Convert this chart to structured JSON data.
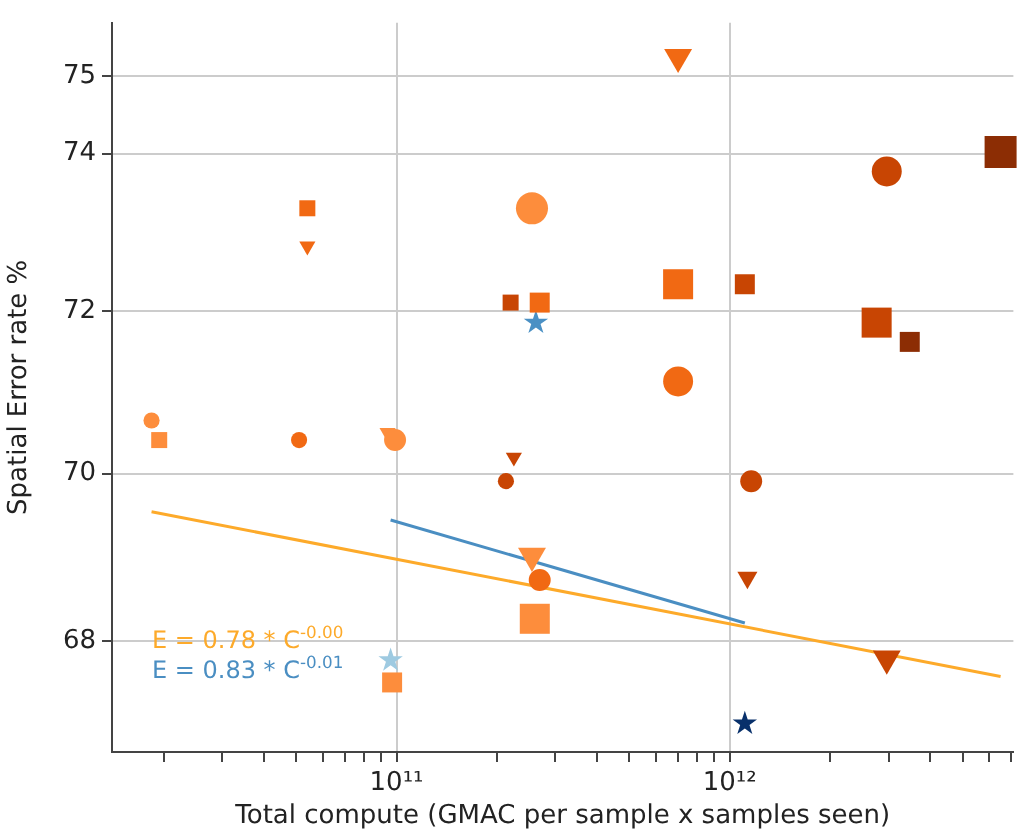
{
  "chart_data": {
    "type": "bubble",
    "xlabel": "Total compute (GMAC per sample x samples seen)",
    "ylabel": "Spatial Error rate %",
    "log": "xy",
    "grid": true,
    "legend": false,
    "xlim": [
      14000000000.0,
      7100000000000.0
    ],
    "ylim": [
      66.7,
      75.7
    ],
    "xticks": [
      {
        "value": 20000000000.0,
        "label": null
      },
      {
        "value": 30000000000.0,
        "label": null
      },
      {
        "value": 40000000000.0,
        "label": null
      },
      {
        "value": 50000000000.0,
        "label": null
      },
      {
        "value": 60000000000.0,
        "label": null
      },
      {
        "value": 70000000000.0,
        "label": null
      },
      {
        "value": 80000000000.0,
        "label": null
      },
      {
        "value": 90000000000.0,
        "label": null
      },
      {
        "value": 100000000000.0,
        "label": "10¹¹"
      },
      {
        "value": 200000000000.0,
        "label": null
      },
      {
        "value": 300000000000.0,
        "label": null
      },
      {
        "value": 400000000000.0,
        "label": null
      },
      {
        "value": 500000000000.0,
        "label": null
      },
      {
        "value": 600000000000.0,
        "label": null
      },
      {
        "value": 700000000000.0,
        "label": null
      },
      {
        "value": 800000000000.0,
        "label": null
      },
      {
        "value": 900000000000.0,
        "label": null
      },
      {
        "value": 1000000000000.0,
        "label": "10¹²"
      },
      {
        "value": 2000000000000.0,
        "label": null
      },
      {
        "value": 3000000000000.0,
        "label": null
      },
      {
        "value": 4000000000000.0,
        "label": null
      },
      {
        "value": 5000000000000.0,
        "label": null
      },
      {
        "value": 6000000000000.0,
        "label": null
      },
      {
        "value": 7000000000000.0,
        "label": null
      }
    ],
    "yticks": [
      68,
      70,
      72,
      74,
      75
    ],
    "series": [
      {
        "marker": "circle",
        "color": "#fd8d3c",
        "x": [
          18400000000.0,
          99000000000.0,
          255000000000.0
        ],
        "values": [
          70.65,
          70.41,
          73.3
        ],
        "sizes": [
          0.2,
          0.37,
          0.79
        ]
      },
      {
        "marker": "square",
        "color": "#fd8d3c",
        "x": [
          19400000000.0,
          97000000000.0,
          260000000000.0
        ],
        "values": [
          70.41,
          67.51,
          68.26
        ],
        "sizes": [
          0.25,
          0.39,
          0.88
        ]
      },
      {
        "marker": "triangle",
        "color": "#fd8d3c",
        "x": [
          94000000000.0,
          255000000000.0
        ],
        "values": [
          70.5,
          69.01
        ],
        "sizes": [
          0.11,
          0.33
        ]
      },
      {
        "marker": "circle",
        "color": "#f16913",
        "x": [
          51000000000.0,
          269000000000.0,
          700000000000.0
        ],
        "values": [
          70.41,
          68.72,
          71.13
        ],
        "sizes": [
          0.2,
          0.37,
          0.69
        ]
      },
      {
        "marker": "square",
        "color": "#f16913",
        "x": [
          54000000000.0,
          269000000000.0,
          700000000000.0
        ],
        "values": [
          73.3,
          72.11,
          72.34
        ],
        "sizes": [
          0.25,
          0.39,
          0.88
        ]
      },
      {
        "marker": "triangle",
        "color": "#f16913",
        "x": [
          54000000000.0,
          700000000000.0
        ],
        "values": [
          72.82,
          75.25
        ],
        "sizes": [
          0.11,
          0.33
        ]
      },
      {
        "marker": "circle",
        "color": "#c84503",
        "x": [
          213000000000.0,
          1160000000000.0,
          2960000000000.0
        ],
        "values": [
          69.91,
          69.91,
          73.77
        ],
        "sizes": [
          0.2,
          0.37,
          0.69
        ]
      },
      {
        "marker": "square",
        "color": "#c84503",
        "x": [
          220000000000.0,
          1110000000000.0,
          2760000000000.0
        ],
        "values": [
          72.11,
          72.34,
          71.86
        ],
        "sizes": [
          0.25,
          0.39,
          0.88
        ]
      },
      {
        "marker": "triangle",
        "color": "#c84503",
        "x": [
          225000000000.0,
          1130000000000.0,
          2960000000000.0
        ],
        "values": [
          70.2,
          68.75,
          67.79
        ],
        "sizes": [
          0.11,
          0.17,
          0.33
        ]
      },
      {
        "marker": "square",
        "color": "#8c2d04",
        "x": [
          3470000000000.0,
          6500000000000.0
        ],
        "values": [
          71.62,
          74.02
        ],
        "sizes": [
          0.39,
          1
        ]
      },
      {
        "marker": "star",
        "colors": [
          "#9ecae1",
          "#4a90c4",
          "#08306b"
        ],
        "x": [
          96000000000.0,
          262000000000.0,
          1110000000000.0
        ],
        "values": [
          67.77,
          71.86,
          67.03
        ],
        "sizes": [
          0.18,
          0.18,
          0.18
        ]
      },
      {
        "type": "line",
        "marker": "none",
        "color": "#fdaa2a",
        "x": [
          18400000000.0,
          6500000000000.0
        ],
        "values": [
          69.54,
          67.58
        ]
      },
      {
        "type": "line",
        "marker": "none",
        "color": "#4a8ec2",
        "x": [
          96000000000.0,
          1110000000000.0
        ],
        "values": [
          69.44,
          68.21
        ]
      }
    ],
    "annotations": [
      "E = 0.78 * C$^{-0.00}$",
      "E = 0.83 * C$^{-0.01}$"
    ]
  }
}
